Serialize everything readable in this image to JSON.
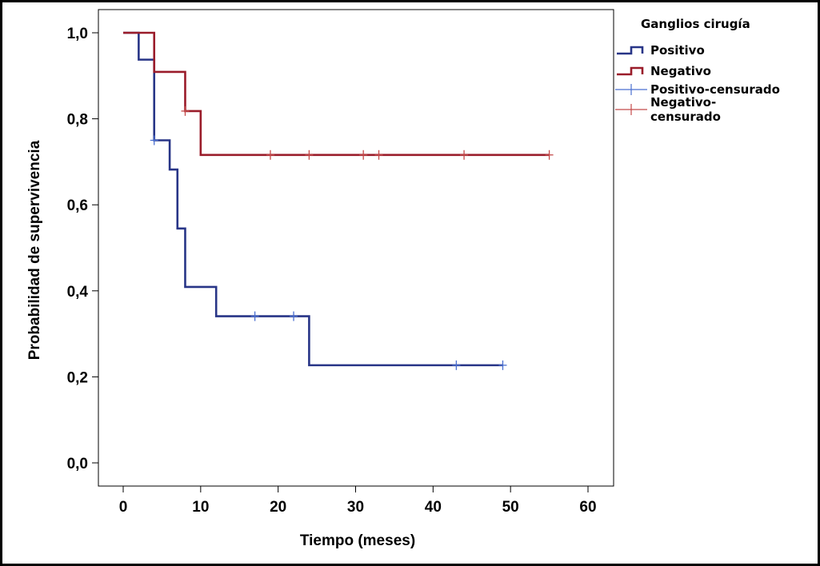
{
  "chart_data": {
    "type": "line",
    "subtype": "kaplan-meier-step",
    "xlabel": "Tiempo (meses)",
    "ylabel": "Probabilidad de supervivencia",
    "xlim": [
      -3,
      63
    ],
    "ylim": [
      -0.05,
      1.05
    ],
    "x_ticks": [
      0,
      10,
      20,
      30,
      40,
      50,
      60
    ],
    "x_tick_labels": [
      "0",
      "10",
      "20",
      "30",
      "40",
      "50",
      "60"
    ],
    "y_ticks": [
      0.0,
      0.2,
      0.4,
      0.6,
      0.8,
      1.0
    ],
    "y_tick_labels": [
      "0,0",
      "0,2",
      "0,4",
      "0,6",
      "0,8",
      "1,0"
    ],
    "grid": false,
    "legend": {
      "title": "Ganglios cirugía",
      "placement": "right",
      "entries": [
        {
          "label": "Positivo",
          "kind": "line",
          "color": "#283587"
        },
        {
          "label": "Negativo",
          "kind": "line",
          "color": "#9a1c2a"
        },
        {
          "label": "Positivo-censurado",
          "kind": "censor",
          "color": "#4a6fd0"
        },
        {
          "label_lines": [
            "Negativo-",
            "censurado"
          ],
          "kind": "censor",
          "color": "#c44a4a"
        }
      ]
    },
    "series": [
      {
        "name": "Positivo",
        "color": "#283587",
        "censor_color": "#4a6fd0",
        "steps": [
          [
            0,
            1.0
          ],
          [
            2,
            0.9375
          ],
          [
            4,
            0.75
          ],
          [
            6,
            0.682
          ],
          [
            7,
            0.545
          ],
          [
            8,
            0.409
          ],
          [
            12,
            0.341
          ],
          [
            24,
            0.227
          ]
        ],
        "end_x": 49,
        "censored": [
          [
            4,
            0.75
          ],
          [
            17,
            0.341
          ],
          [
            22,
            0.341
          ],
          [
            43,
            0.227
          ],
          [
            49,
            0.227
          ]
        ]
      },
      {
        "name": "Negativo",
        "color": "#9a1c2a",
        "censor_color": "#c44a4a",
        "steps": [
          [
            0,
            1.0
          ],
          [
            4,
            0.909
          ],
          [
            8,
            0.818
          ],
          [
            10,
            0.716
          ]
        ],
        "end_x": 55,
        "censored": [
          [
            8,
            0.818
          ],
          [
            19,
            0.716
          ],
          [
            24,
            0.716
          ],
          [
            31,
            0.716
          ],
          [
            33,
            0.716
          ],
          [
            44,
            0.716
          ],
          [
            55,
            0.716
          ]
        ]
      }
    ]
  }
}
